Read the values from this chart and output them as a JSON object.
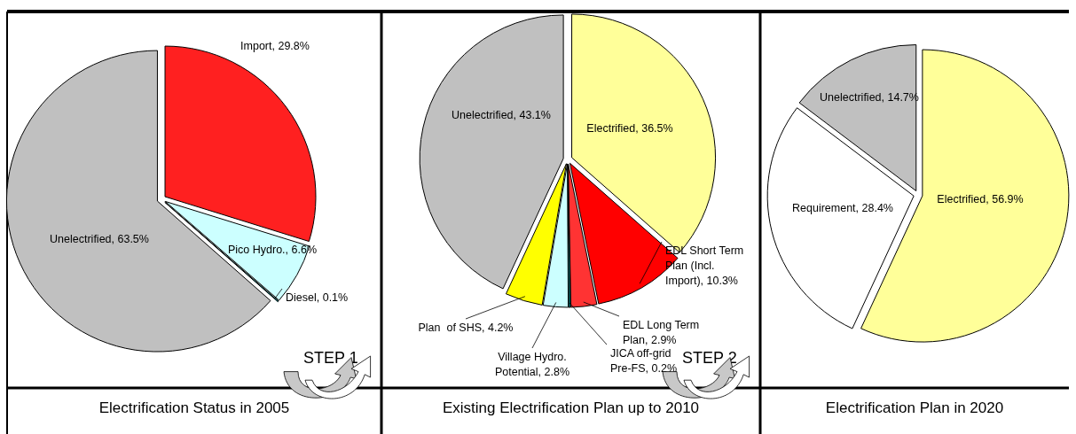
{
  "chart_data": [
    {
      "type": "pie",
      "title": "Electrification Status in 2005",
      "categories": [
        "Import",
        "Pico Hydro.",
        "Diesel",
        "Unelectrified"
      ],
      "values": [
        29.8,
        6.6,
        0.1,
        63.5
      ],
      "colors": [
        "#ff2020",
        "#ccffff",
        "#00aaaa",
        "#c0c0c0"
      ],
      "value_labels": [
        "29.8%",
        "6.6%",
        "0.1%",
        "63.5%"
      ]
    },
    {
      "type": "pie",
      "title": "Existing Electrification Plan up to 2010",
      "categories": [
        "Electrified",
        "EDL Short Term Plan (Incl. Import)",
        "EDL Long Term Plan",
        "JICA off-grid Pre-FS",
        "Village Hydro. Potential",
        "Plan  of SHS",
        "Unelectrified"
      ],
      "values": [
        36.5,
        10.3,
        2.9,
        0.2,
        2.8,
        4.2,
        43.1
      ],
      "colors": [
        "#ffff99",
        "#ff0000",
        "#ff3333",
        "#009999",
        "#ccffff",
        "#ffff00",
        "#c0c0c0"
      ],
      "value_labels": [
        "36.5%",
        "10.3%",
        "2.9%",
        "0.2%",
        "2.8%",
        "4.2%",
        "43.1%"
      ],
      "annotations": [
        "STEP 1"
      ]
    },
    {
      "type": "pie",
      "title": "Electrification Plan in 2020",
      "categories": [
        "Electrified",
        "Requirement",
        "Unelectrified"
      ],
      "values": [
        56.9,
        28.4,
        14.7
      ],
      "colors": [
        "#ffff99",
        "#ffffff",
        "#c0c0c0"
      ],
      "value_labels": [
        "56.9%",
        "28.4%",
        "14.7%"
      ],
      "annotations": [
        "STEP 2"
      ]
    }
  ]
}
